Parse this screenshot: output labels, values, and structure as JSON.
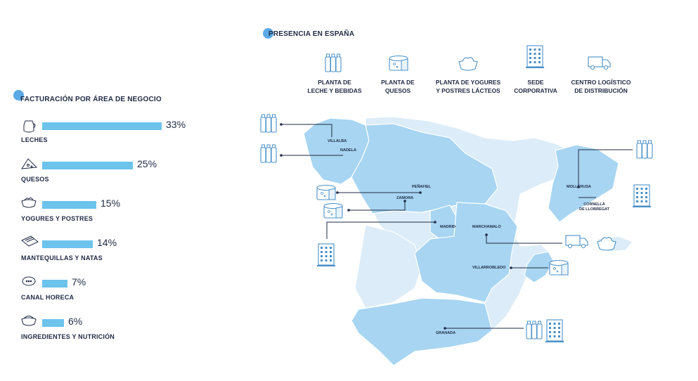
{
  "left_panel": {
    "title": "FACTURACIÓN POR ÁREA DE NEGOCIO",
    "chart_data": {
      "type": "bar",
      "title": "FACTURACIÓN POR ÁREA DE NEGOCIO",
      "categories": [
        "LECHES",
        "QUESOS",
        "YOGURES Y POSTRES",
        "MANTEQUILLAS Y NATAS",
        "CANAL HORECA",
        "INGREDIENTES Y NUTRICIÓN"
      ],
      "values": [
        33,
        25,
        15,
        14,
        7,
        6
      ],
      "value_labels": [
        "33%",
        "25%",
        "15%",
        "14%",
        "7%",
        "6%"
      ],
      "icons": [
        "milk-jug-icon",
        "cheese-slice-icon",
        "yogurt-bowl-icon",
        "butter-icon",
        "horeca-plate-icon",
        "ingredients-bowl-icon"
      ],
      "bar_color": "#6cc3ec"
    }
  },
  "map_panel": {
    "title": "PRESENCIA EN ESPAÑA",
    "legend": [
      {
        "label": "PLANTA DE\nLECHE Y BEBIDAS",
        "icon": "milk-bottles-icon"
      },
      {
        "label": "PLANTA DE\nQUESOS",
        "icon": "cheese-wheel-icon"
      },
      {
        "label": "PLANTA DE YOGURES\nY POSTRES LÁCTEOS",
        "icon": "yogurt-bowl-icon"
      },
      {
        "label": "SEDE\nCORPORATIVA",
        "icon": "building-icon"
      },
      {
        "label": "CENTRO LOGÍSTICO\nDE DISTRIBUCIÓN",
        "icon": "truck-icon"
      }
    ],
    "cities": [
      "VILLALBA",
      "NADELA",
      "PEÑAFIEL",
      "ZAMORA",
      "MADRID",
      "MARCHAMALO",
      "MOLLERUSA",
      "CORNELLÀ\nDE LLOBREGAT",
      "VILLARROBLEDO",
      "GRANADA"
    ],
    "colors": {
      "region_light": "#dcecf8",
      "region_dark": "#a7d5f2",
      "accent": "#5aa9e6",
      "icon_stroke": "#4a90c8"
    }
  }
}
